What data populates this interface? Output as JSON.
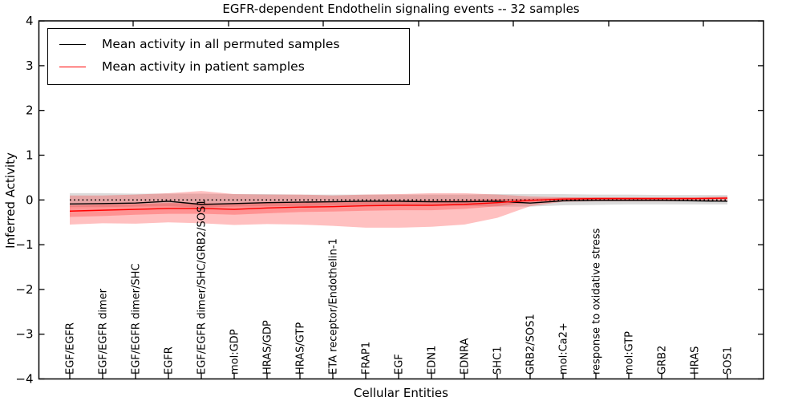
{
  "figure": {
    "title": "EGFR-dependent Endothelin signaling events -- 32 samples"
  },
  "axes": {
    "xlabel": "Cellular Entities",
    "ylabel": "Inferred Activity",
    "ytick_labels": [
      "4",
      "3",
      "2",
      "1",
      "0",
      "−1",
      "−2",
      "−3",
      "−4"
    ],
    "ytick_values": [
      4,
      3,
      2,
      1,
      0,
      -1,
      -2,
      -3,
      -4
    ],
    "ylim": [
      -4,
      4
    ]
  },
  "legend": {
    "items": [
      {
        "label": "Mean activity in all permuted samples",
        "color": "#000000"
      },
      {
        "label": "Mean activity in patient samples",
        "color": "#ff0000"
      }
    ]
  },
  "colors": {
    "permuted_line": "#000000",
    "patient_line": "#ff0000",
    "permuted_band_fill": "rgba(0,0,0,0.14)",
    "patient_band_fill": "rgba(255,30,30,0.28)",
    "zero_line": "#000000"
  },
  "chart_data": {
    "type": "line",
    "title": "EGFR-dependent Endothelin signaling events -- 32 samples",
    "xlabel": "Cellular Entities",
    "ylabel": "Inferred Activity",
    "ylim": [
      -4,
      4
    ],
    "grid": false,
    "legend_position": "upper left",
    "categories": [
      "EGF/EGFR",
      "EGF/EGFR dimer",
      "EGF/EGFR dimer/SHC",
      "EGFR",
      "EGF/EGFR dimer/SHC/GRB2/SOS1",
      "mol:GDP",
      "HRAS/GDP",
      "HRAS/GTP",
      "ETA receptor/Endothelin-1",
      "FRAP1",
      "EGF",
      "EDN1",
      "EDNRA",
      "SHC1",
      "GRB2/SOS1",
      "mol:Ca2+",
      "response to oxidative stress",
      "mol:GTP",
      "GRB2",
      "HRAS",
      "SOS1"
    ],
    "series": [
      {
        "name": "Mean activity in all permuted samples",
        "style": "solid",
        "values": [
          -0.09,
          -0.08,
          -0.07,
          -0.03,
          -0.1,
          -0.08,
          -0.06,
          -0.05,
          -0.04,
          -0.03,
          -0.03,
          -0.04,
          -0.04,
          -0.03,
          -0.07,
          -0.02,
          -0.01,
          -0.01,
          -0.01,
          -0.02,
          -0.03
        ]
      },
      {
        "name": "Mean activity in patient samples",
        "style": "solid",
        "values": [
          -0.25,
          -0.23,
          -0.21,
          -0.19,
          -0.19,
          -0.21,
          -0.18,
          -0.16,
          -0.15,
          -0.13,
          -0.12,
          -0.12,
          -0.1,
          -0.06,
          -0.01,
          0.02,
          0.03,
          0.03,
          0.03,
          0.03,
          0.04
        ]
      },
      {
        "name": "zero baseline",
        "style": "dotted",
        "values": [
          0,
          0,
          0,
          0,
          0,
          0,
          0,
          0,
          0,
          0,
          0,
          0,
          0,
          0,
          0,
          0,
          0,
          0,
          0,
          0,
          0
        ]
      }
    ],
    "bands": [
      {
        "name": "permuted range",
        "top": [
          0.15,
          0.15,
          0.14,
          0.14,
          0.14,
          0.13,
          0.13,
          0.12,
          0.12,
          0.12,
          0.12,
          0.12,
          0.12,
          0.13,
          0.13,
          0.13,
          0.12,
          0.12,
          0.11,
          0.11,
          0.11
        ],
        "bottom": [
          -0.16,
          -0.16,
          -0.15,
          -0.14,
          -0.17,
          -0.15,
          -0.14,
          -0.14,
          -0.13,
          -0.13,
          -0.13,
          -0.13,
          -0.13,
          -0.15,
          -0.15,
          -0.12,
          -0.11,
          -0.1,
          -0.1,
          -0.1,
          -0.1
        ]
      },
      {
        "name": "patient range outer",
        "top": [
          0.1,
          0.1,
          0.12,
          0.15,
          0.2,
          0.13,
          0.12,
          0.12,
          0.1,
          0.12,
          0.13,
          0.15,
          0.15,
          0.12,
          0.08,
          0.06,
          0.06,
          0.06,
          0.06,
          0.06,
          0.08
        ],
        "bottom": [
          -0.55,
          -0.52,
          -0.53,
          -0.5,
          -0.52,
          -0.56,
          -0.54,
          -0.55,
          -0.58,
          -0.62,
          -0.62,
          -0.6,
          -0.55,
          -0.4,
          -0.14,
          -0.04,
          -0.03,
          -0.03,
          -0.03,
          -0.03,
          -0.02
        ]
      },
      {
        "name": "patient range inner",
        "top": [
          -0.12,
          -0.1,
          -0.09,
          -0.07,
          -0.07,
          -0.09,
          -0.06,
          -0.05,
          -0.04,
          -0.02,
          -0.01,
          -0.01,
          0.0,
          0.02,
          0.03,
          0.05,
          0.05,
          0.05,
          0.05,
          0.05,
          0.06
        ],
        "bottom": [
          -0.38,
          -0.36,
          -0.33,
          -0.31,
          -0.31,
          -0.33,
          -0.3,
          -0.27,
          -0.26,
          -0.24,
          -0.23,
          -0.23,
          -0.2,
          -0.14,
          -0.05,
          -0.01,
          0.01,
          0.01,
          0.01,
          0.01,
          0.02
        ]
      }
    ]
  }
}
